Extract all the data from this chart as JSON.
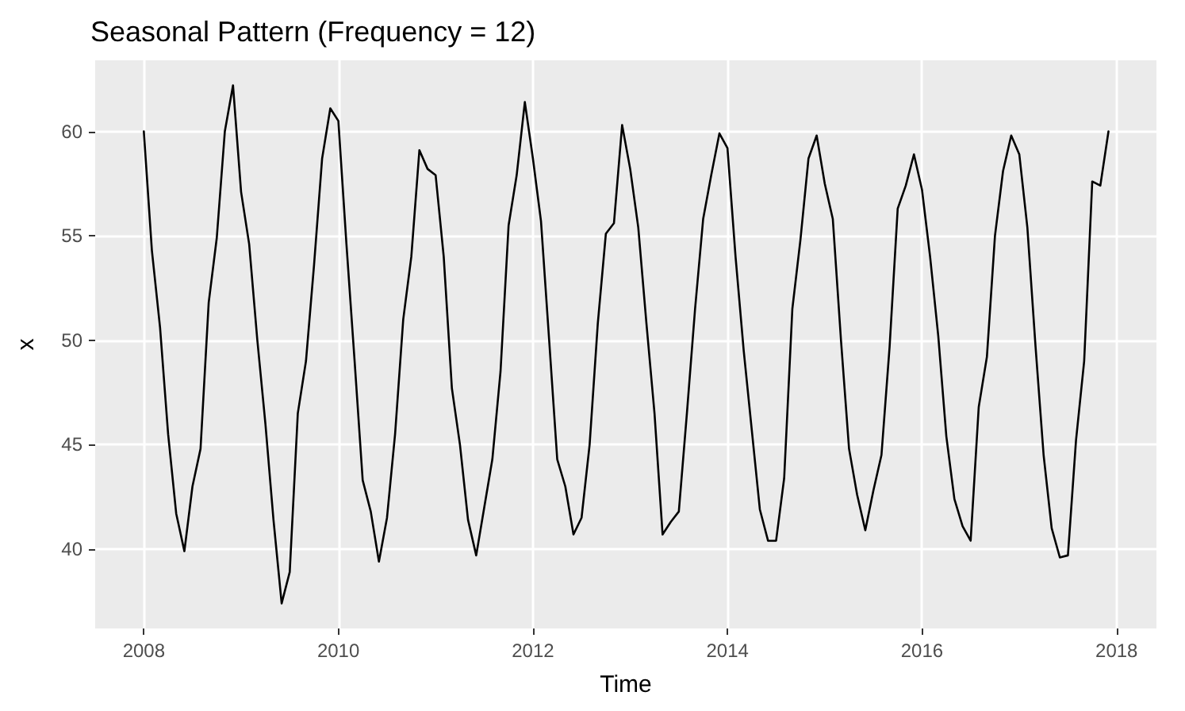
{
  "chart_data": {
    "type": "line",
    "title": "Seasonal Pattern (Frequency = 12)",
    "xlabel": "Time",
    "ylabel": "x",
    "x": [
      2008,
      2008.083,
      2008.167,
      2008.25,
      2008.333,
      2008.417,
      2008.5,
      2008.583,
      2008.667,
      2008.75,
      2008.833,
      2008.917,
      2009,
      2009.083,
      2009.167,
      2009.25,
      2009.333,
      2009.417,
      2009.5,
      2009.583,
      2009.667,
      2009.75,
      2009.833,
      2009.917,
      2010,
      2010.083,
      2010.167,
      2010.25,
      2010.333,
      2010.417,
      2010.5,
      2010.583,
      2010.667,
      2010.75,
      2010.833,
      2010.917,
      2011,
      2011.083,
      2011.167,
      2011.25,
      2011.333,
      2011.417,
      2011.5,
      2011.583,
      2011.667,
      2011.75,
      2011.833,
      2011.917,
      2012,
      2012.083,
      2012.167,
      2012.25,
      2012.333,
      2012.417,
      2012.5,
      2012.583,
      2012.667,
      2012.75,
      2012.833,
      2012.917,
      2013,
      2013.083,
      2013.167,
      2013.25,
      2013.333,
      2013.417,
      2013.5,
      2013.583,
      2013.667,
      2013.75,
      2013.833,
      2013.917,
      2014,
      2014.083,
      2014.167,
      2014.25,
      2014.333,
      2014.417,
      2014.5,
      2014.583,
      2014.667,
      2014.75,
      2014.833,
      2014.917,
      2015,
      2015.083,
      2015.167,
      2015.25,
      2015.333,
      2015.417,
      2015.5,
      2015.583,
      2015.667,
      2015.75,
      2015.833,
      2015.917,
      2016,
      2016.083,
      2016.167,
      2016.25,
      2016.333,
      2016.417,
      2016.5,
      2016.583,
      2016.667,
      2016.75,
      2016.833,
      2016.917,
      2017,
      2017.083,
      2017.167,
      2017.25,
      2017.333,
      2017.417,
      2017.5,
      2017.583,
      2017.667,
      2017.75,
      2017.833,
      2017.917
    ],
    "series": [
      {
        "color": "#000000",
        "values": [
          60.0,
          54.3,
          50.6,
          45.5,
          41.7,
          39.9,
          43.0,
          44.8,
          51.8,
          54.9,
          60.0,
          62.2,
          57.1,
          54.6,
          50.0,
          46.0,
          41.4,
          37.4,
          38.9,
          46.5,
          49.0,
          53.6,
          58.7,
          61.1,
          60.5,
          54.6,
          49.0,
          43.3,
          41.8,
          39.4,
          41.5,
          45.5,
          51.0,
          54.0,
          59.1,
          58.2,
          57.9,
          54.0,
          47.7,
          45.0,
          41.4,
          39.7,
          42.0,
          44.3,
          48.5,
          55.5,
          57.9,
          61.4,
          58.7,
          55.7,
          50.0,
          44.3,
          43.0,
          40.7,
          41.5,
          45.0,
          50.8,
          55.1,
          55.6,
          60.3,
          58.2,
          55.4,
          50.8,
          46.5,
          40.7,
          41.3,
          41.8,
          46.5,
          51.5,
          55.8,
          57.9,
          59.9,
          59.2,
          54.0,
          49.5,
          45.7,
          41.9,
          40.4,
          40.4,
          43.4,
          51.5,
          54.8,
          58.7,
          59.8,
          57.5,
          55.8,
          50.0,
          44.8,
          42.6,
          40.9,
          42.8,
          44.5,
          49.7,
          56.3,
          57.4,
          58.9,
          57.2,
          54.0,
          50.2,
          45.4,
          42.4,
          41.1,
          40.4,
          46.8,
          49.2,
          55.0,
          58.1,
          59.8,
          58.9,
          55.4,
          49.7,
          44.5,
          41.0,
          39.6,
          39.7,
          45.2,
          49.0,
          57.6,
          57.4,
          60.0
        ]
      }
    ],
    "xlim": [
      2007.5,
      2018.41
    ],
    "xticks": [
      2008,
      2010,
      2012,
      2014,
      2016,
      2018
    ],
    "ylim": [
      36.2,
      63.4
    ],
    "yticks": [
      40,
      45,
      50,
      55,
      60
    ],
    "grid": true,
    "marker": "none",
    "line_style": "solid"
  }
}
